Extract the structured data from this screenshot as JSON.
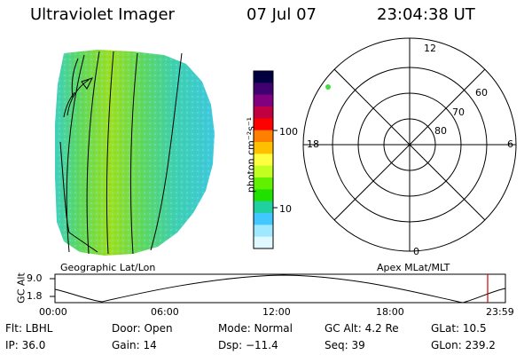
{
  "header": {
    "instrument": "Ultraviolet Imager",
    "date": "07 Jul 07",
    "time": "23:04:38 UT"
  },
  "image_panel": {
    "caption": "Geographic Lat/Lon"
  },
  "colorbar": {
    "label": "photon cm⁻²s⁻¹",
    "ticks": [
      "100",
      "10"
    ],
    "colors": [
      "#000040",
      "#400070",
      "#800080",
      "#c00040",
      "#ff0000",
      "#ff8000",
      "#ffc000",
      "#ffff40",
      "#c0ff20",
      "#60f000",
      "#20e000",
      "#20d0a0",
      "#40c8ff",
      "#a0e8ff",
      "#e0f8ff"
    ]
  },
  "polar_plot": {
    "caption": "Apex MLat/MLT",
    "mlt_labels": [
      "12",
      "18",
      "6",
      "0"
    ],
    "lat_labels": [
      "60",
      "70",
      "80"
    ]
  },
  "timeline": {
    "ylabel": "GC Alt",
    "y_ticks": [
      "9.0",
      "1.8"
    ],
    "x_ticks": [
      "00:00",
      "06:00",
      "12:00",
      "18:00",
      "23:59"
    ],
    "marker_color": "#d00000"
  },
  "info_rows": [
    [
      "Flt: LBHL",
      "Door: Open",
      "Mode: Normal",
      "GC Alt: 4.2 Re",
      "GLat: 10.5"
    ],
    [
      "IP: 36.0",
      "Gain: 14",
      "Dsp: −11.4",
      "Seq: 39",
      "GLon: 239.2"
    ]
  ]
}
